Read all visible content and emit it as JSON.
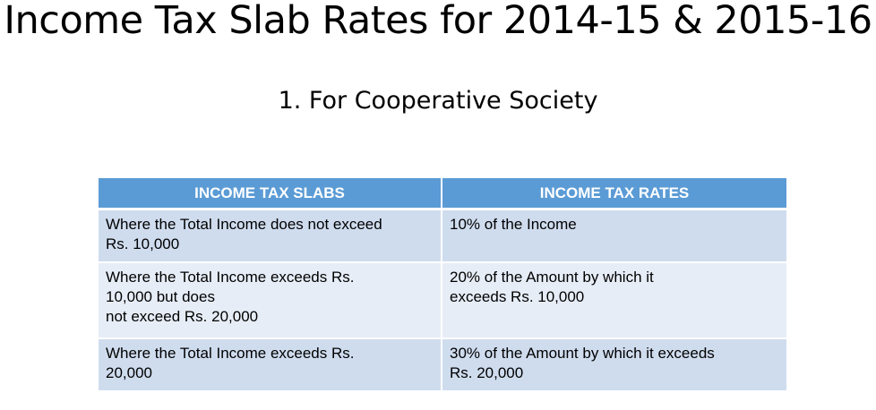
{
  "title": "Income Tax Slab Rates for 2014-15 & 2015-16",
  "subtitle": "1. For Cooperative Society",
  "table": {
    "headers": [
      "INCOME TAX SLABS",
      "INCOME TAX RATES"
    ],
    "rows": [
      {
        "slab": [
          "Where the Total Income does not exceed",
          "Rs. 10,000"
        ],
        "rate": [
          "10% of the Income"
        ]
      },
      {
        "slab": [
          "Where the Total Income exceeds Rs.",
          "10,000 but does",
          "not exceed Rs. 20,000"
        ],
        "rate": [
          "20% of the Amount by which it",
          "exceeds Rs. 10,000"
        ]
      },
      {
        "slab": [
          "Where the Total Income exceeds Rs.",
          "20,000"
        ],
        "rate": [
          "30% of the Amount by which it exceeds",
          "Rs. 20,000"
        ]
      }
    ]
  }
}
